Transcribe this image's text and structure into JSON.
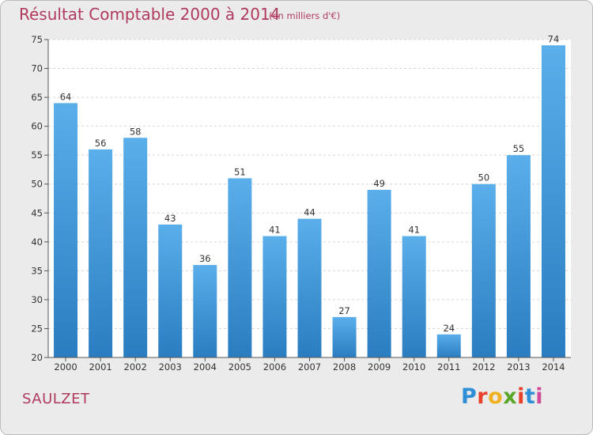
{
  "page": {
    "title": "Résultat Comptable 2000 à 2014",
    "subtitle": "(en milliers d'€)",
    "commune": "SAULZET",
    "logo": "Proxiti",
    "logo_colors": [
      "#2f8fd6",
      "#e8402a",
      "#f0b020",
      "#5aa82a",
      "#e8402a",
      "#2f8fd6",
      "#d04a9a"
    ]
  },
  "chart_data": {
    "type": "bar",
    "title": "Résultat Comptable 2000 à 2014",
    "subtitle": "(en milliers d'€)",
    "xlabel": "",
    "ylabel": "",
    "categories": [
      "2000",
      "2001",
      "2002",
      "2003",
      "2004",
      "2005",
      "2006",
      "2007",
      "2008",
      "2009",
      "2010",
      "2011",
      "2012",
      "2013",
      "2014"
    ],
    "values": [
      64,
      56,
      58,
      43,
      36,
      51,
      41,
      44,
      27,
      49,
      41,
      24,
      50,
      55,
      74
    ],
    "ylim": [
      20,
      75
    ],
    "yticks": [
      20,
      25,
      30,
      35,
      40,
      45,
      50,
      55,
      60,
      65,
      70,
      75
    ],
    "grid": true,
    "legend": "none",
    "bar_color_top": "#5aaeea",
    "bar_color_bottom": "#2a7dc0"
  }
}
